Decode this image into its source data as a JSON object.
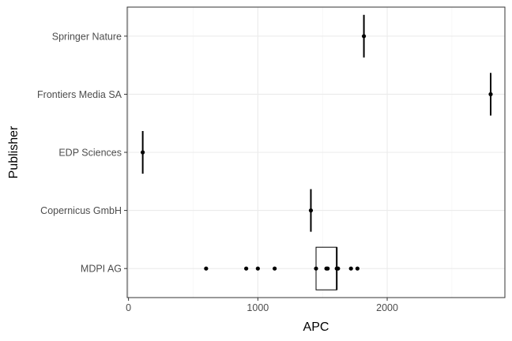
{
  "chart_data": {
    "type": "boxplot",
    "xlabel": "APC",
    "ylabel": "Publisher",
    "xlim": [
      -10,
      2910
    ],
    "xticks": [
      0,
      1000,
      2000
    ],
    "xtick_labels": [
      "0",
      "1000",
      "2000"
    ],
    "grid": true,
    "categories": [
      "MDPI AG",
      "Copernicus GmbH",
      "EDP Sciences",
      "Frontiers Media SA",
      "Springer Nature"
    ],
    "series": [
      {
        "category": "Springer Nature",
        "points": [
          1820
        ],
        "box": {
          "q1": 1820,
          "median": 1820,
          "q3": 1820
        }
      },
      {
        "category": "Frontiers Media SA",
        "points": [
          2800
        ],
        "box": {
          "q1": 2800,
          "median": 2800,
          "q3": 2800
        }
      },
      {
        "category": "EDP Sciences",
        "points": [
          110
        ],
        "box": {
          "q1": 110,
          "median": 110,
          "q3": 110
        }
      },
      {
        "category": "Copernicus GmbH",
        "points": [
          1410
        ],
        "box": {
          "q1": 1410,
          "median": 1410,
          "q3": 1410
        }
      },
      {
        "category": "MDPI AG",
        "points": [
          600,
          910,
          1000,
          1130,
          1450,
          1530,
          1540,
          1610,
          1620,
          1720,
          1770
        ],
        "box": {
          "q1": 1450,
          "median": 1610,
          "q3": 1610
        }
      }
    ]
  }
}
